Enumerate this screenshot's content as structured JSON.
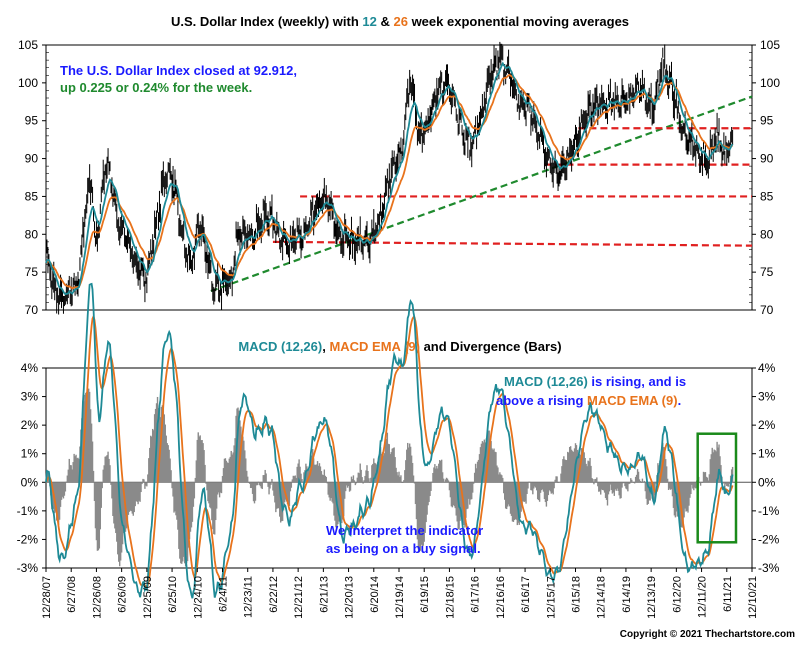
{
  "title": {
    "prefix": "U.S. Dollar Index (weekly) with ",
    "n1": "12",
    "mid": " & ",
    "n2": "26",
    "suffix": " week exponential moving averages"
  },
  "colors": {
    "price": "#000000",
    "ema12": "#1e8a96",
    "ema26": "#e8731c",
    "trend": "#1f8a2e",
    "support": "#e02020",
    "hist": "#8a8a8a",
    "note_blue": "#1a1aff",
    "note_green": "#1f8a2e",
    "box": "#1a8a1a"
  },
  "top_note": {
    "line1": "The U.S. Dollar Index closed at 92.912,",
    "line2": "up 0.225 or 0.24% for the week."
  },
  "macd_title": {
    "part1": "MACD (12,26)",
    "part2": ", ",
    "part3": "MACD EMA (9)",
    "part4": " and Divergence (Bars)"
  },
  "macd_note": {
    "line1a": "MACD (12,26)",
    "line1b": " is rising, and is",
    "line2a": "above a rising ",
    "line2b": "MACD EMA (9)",
    "line2c": "."
  },
  "signal_note": {
    "line1": "We interpret the indicator",
    "line2": "as being on a buy signal."
  },
  "copyright": "Copyright © 2021 Thechartstore.com",
  "chart_data": [
    {
      "type": "line",
      "title": "U.S. Dollar Index (weekly) with 12 & 26 week exponential moving averages",
      "ylim": [
        70,
        105
      ],
      "yticks": [
        70,
        75,
        80,
        85,
        90,
        95,
        100,
        105
      ],
      "grid": false,
      "x_range": [
        "2007-12-28",
        "2021-12-10"
      ],
      "series": [
        {
          "kind": "price",
          "anchors": [
            [
              "2007-12-28",
              77.0
            ],
            [
              "2008-03-14",
              72.0
            ],
            [
              "2008-04-18",
              71.5
            ],
            [
              "2008-07-18",
              72.5
            ],
            [
              "2008-11-21",
              87.0
            ],
            [
              "2008-12-19",
              79.0
            ],
            [
              "2009-03-06",
              89.0
            ],
            [
              "2009-06-26",
              80.5
            ],
            [
              "2009-11-27",
              74.5
            ],
            [
              "2010-06-04",
              88.0
            ],
            [
              "2010-11-05",
              76.0
            ],
            [
              "2011-01-07",
              81.0
            ],
            [
              "2011-04-29",
              73.0
            ],
            [
              "2011-08-26",
              74.0
            ],
            [
              "2011-10-07",
              79.5
            ],
            [
              "2011-12-30",
              80.0
            ],
            [
              "2012-05-25",
              82.5
            ],
            [
              "2012-09-14",
              79.0
            ],
            [
              "2012-12-21",
              79.5
            ],
            [
              "2013-07-05",
              84.5
            ],
            [
              "2013-10-25",
              79.5
            ],
            [
              "2014-05-09",
              79.0
            ],
            [
              "2014-12-26",
              90.0
            ],
            [
              "2015-03-13",
              100.0
            ],
            [
              "2015-05-15",
              93.5
            ],
            [
              "2015-11-27",
              100.0
            ],
            [
              "2016-05-06",
              92.0
            ],
            [
              "2016-12-23",
              103.0
            ],
            [
              "2017-05-26",
              97.0
            ],
            [
              "2018-02-16",
              88.5
            ],
            [
              "2018-11-09",
              97.0
            ],
            [
              "2019-04-26",
              97.5
            ],
            [
              "2019-09-27",
              99.0
            ],
            [
              "2019-12-20",
              97.0
            ],
            [
              "2020-03-20",
              102.5
            ],
            [
              "2020-04-17",
              100.0
            ],
            [
              "2020-08-28",
              92.5
            ],
            [
              "2020-12-04",
              90.5
            ],
            [
              "2021-01-08",
              89.5
            ],
            [
              "2021-03-31",
              93.0
            ],
            [
              "2021-05-28",
              90.0
            ],
            [
              "2021-06-18",
              92.2
            ],
            [
              "2021-07-02",
              92.3
            ],
            [
              "2021-07-23",
              92.9
            ]
          ]
        },
        {
          "kind": "ema",
          "period": 12
        },
        {
          "kind": "ema",
          "period": 26
        }
      ],
      "annotations": [
        {
          "kind": "trendline",
          "from": [
            "2011-04-01",
            72.5
          ],
          "to": [
            "2021-12-10",
            98.2
          ]
        },
        {
          "kind": "support",
          "from": [
            "2012-06-22",
            79.0
          ],
          "to": [
            "2021-12-10",
            78.5
          ]
        },
        {
          "kind": "support",
          "from": [
            "2013-01-04",
            85.0
          ],
          "to": [
            "2021-12-10",
            85.0
          ]
        },
        {
          "kind": "support",
          "from": [
            "2017-11-03",
            89.2
          ],
          "to": [
            "2021-12-10",
            89.2
          ]
        },
        {
          "kind": "support",
          "from": [
            "2018-07-06",
            94.0
          ],
          "to": [
            "2021-12-10",
            94.0
          ]
        }
      ]
    },
    {
      "type": "line",
      "title": "MACD (12,26), MACD EMA (9) and Divergence (Bars)",
      "ylim": [
        -3,
        4
      ],
      "yticks": [
        "4%",
        "3%",
        "2%",
        "1%",
        "0%",
        "-1%",
        "-2%",
        "-3%"
      ],
      "xticks": [
        "12/28/07",
        "6/27/08",
        "12/26/08",
        "6/26/09",
        "12/25/09",
        "6/25/10",
        "12/24/10",
        "6/24/11",
        "12/23/11",
        "6/22/12",
        "12/21/12",
        "6/21/13",
        "12/20/13",
        "6/20/14",
        "12/19/14",
        "6/19/15",
        "12/18/15",
        "6/17/16",
        "12/16/16",
        "6/16/17",
        "12/15/17",
        "6/15/18",
        "12/14/18",
        "6/14/19",
        "12/13/19",
        "6/12/20",
        "12/11/20",
        "6/11/21",
        "12/10/21"
      ],
      "series": [
        {
          "kind": "macd",
          "name": "MACD (12,26)"
        },
        {
          "kind": "signal",
          "name": "MACD EMA (9)"
        },
        {
          "kind": "histogram",
          "name": "Divergence (Bars)"
        }
      ],
      "highlight_box": {
        "from": "2020-11-13",
        "to": "2021-12-10",
        "ymin": -2.1,
        "ymax": 1.7
      }
    }
  ]
}
